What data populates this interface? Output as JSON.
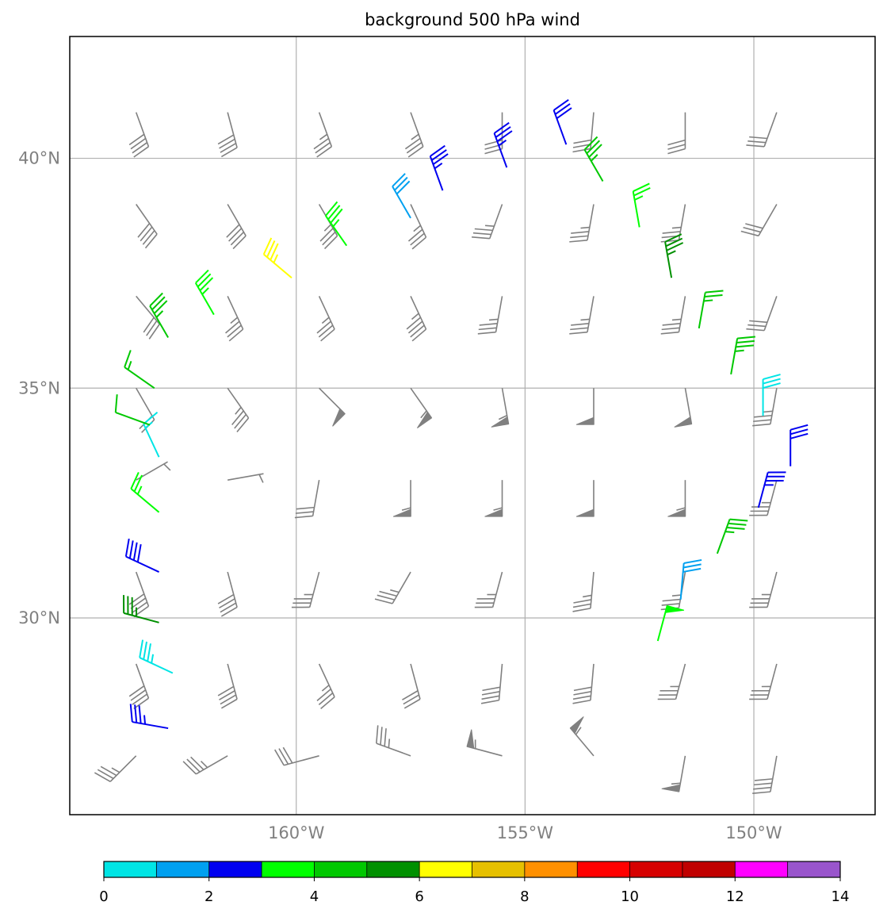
{
  "chart_data": {
    "type": "wind_barbs",
    "title": "background 500 hPa wind",
    "projection": "lon/lat map",
    "lon_range": [
      -164.95,
      -147.35
    ],
    "lat_range": [
      25.72,
      42.65
    ],
    "xticks": [
      {
        "value": -160,
        "label": "160°W"
      },
      {
        "value": -155,
        "label": "155°W"
      },
      {
        "value": -150,
        "label": "150°W"
      }
    ],
    "yticks": [
      {
        "value": 30,
        "label": "30°N"
      },
      {
        "value": 35,
        "label": "35°N"
      },
      {
        "value": 40,
        "label": "40°N"
      }
    ],
    "gridlines": true,
    "background_color": "#808080",
    "background_grid": {
      "lons": [
        -163.5,
        -161.5,
        -159.5,
        -157.5,
        -155.5,
        -153.5,
        -151.5,
        -149.5
      ],
      "lats": [
        27.0,
        29.0,
        31.0,
        33.0,
        35.0,
        37.0,
        39.0,
        41.0
      ],
      "barbs": [
        [
          [
            225,
            35
          ],
          [
            240,
            35
          ],
          [
            255,
            30
          ],
          [
            290,
            35
          ],
          [
            285,
            55
          ],
          [
            320,
            55
          ],
          [
            190,
            55
          ],
          [
            190,
            40
          ]
        ],
        [
          [
            160,
            40
          ],
          [
            165,
            40
          ],
          [
            155,
            35
          ],
          [
            165,
            30
          ],
          [
            185,
            40
          ],
          [
            185,
            40
          ],
          [
            195,
            35
          ],
          [
            195,
            35
          ]
        ],
        [
          [
            160,
            40
          ],
          [
            165,
            40
          ],
          [
            195,
            35
          ],
          [
            210,
            35
          ],
          [
            195,
            35
          ],
          [
            185,
            35
          ],
          [
            190,
            35
          ],
          [
            195,
            35
          ]
        ],
        [
          [
            60,
            5
          ],
          [
            80,
            5
          ],
          [
            190,
            30
          ],
          [
            180,
            55
          ],
          [
            180,
            55
          ],
          [
            180,
            50
          ],
          [
            180,
            55
          ],
          [
            195,
            35
          ]
        ],
        [
          [
            150,
            20
          ],
          [
            145,
            35
          ],
          [
            135,
            50
          ],
          [
            145,
            55
          ],
          [
            170,
            55
          ],
          [
            180,
            50
          ],
          [
            170,
            50
          ],
          [
            190,
            35
          ]
        ],
        [
          [
            140,
            30
          ],
          [
            155,
            35
          ],
          [
            155,
            35
          ],
          [
            155,
            45
          ],
          [
            190,
            35
          ],
          [
            190,
            35
          ],
          [
            190,
            35
          ],
          [
            200,
            30
          ]
        ],
        [
          [
            145,
            40
          ],
          [
            150,
            40
          ],
          [
            150,
            35
          ],
          [
            155,
            35
          ],
          [
            200,
            35
          ],
          [
            190,
            35
          ],
          [
            190,
            35
          ],
          [
            210,
            30
          ]
        ],
        [
          [
            160,
            40
          ],
          [
            165,
            40
          ],
          [
            160,
            35
          ],
          [
            160,
            35
          ],
          [
            180,
            30
          ],
          [
            185,
            30
          ],
          [
            180,
            30
          ],
          [
            200,
            30
          ]
        ]
      ]
    },
    "colorbar": {
      "min": 0,
      "max": 14,
      "step": 1,
      "ticks": [
        0,
        2,
        4,
        6,
        8,
        10,
        12,
        14
      ],
      "colors": [
        "#00e5e5",
        "#00a0f0",
        "#0000f0",
        "#00ff00",
        "#00c800",
        "#009000",
        "#ffff00",
        "#e6c000",
        "#ff9000",
        "#ff0000",
        "#d60000",
        "#c00000",
        "#ff00ff",
        "#9955cc"
      ]
    },
    "highlighted_barbs": [
      {
        "lon": -162.8,
        "lat": 27.6,
        "dir": 280,
        "speed": 35,
        "color": "#0000f0"
      },
      {
        "lon": -162.7,
        "lat": 28.8,
        "dir": 295,
        "speed": 35,
        "color": "#00e5e5"
      },
      {
        "lon": -163.0,
        "lat": 29.9,
        "dir": 285,
        "speed": 35,
        "color": "#009000"
      },
      {
        "lon": -163.0,
        "lat": 31.0,
        "dir": 295,
        "speed": 40,
        "color": "#0000f0"
      },
      {
        "lon": -163.0,
        "lat": 32.3,
        "dir": 310,
        "speed": 25,
        "color": "#00ff00"
      },
      {
        "lon": -163.0,
        "lat": 33.5,
        "dir": 335,
        "speed": 15,
        "color": "#00e5e5"
      },
      {
        "lon": -163.2,
        "lat": 34.2,
        "dir": 290,
        "speed": 10,
        "color": "#00c800"
      },
      {
        "lon": -163.1,
        "lat": 35.0,
        "dir": 305,
        "speed": 15,
        "color": "#00c800"
      },
      {
        "lon": -162.8,
        "lat": 36.1,
        "dir": 330,
        "speed": 35,
        "color": "#00c800"
      },
      {
        "lon": -161.8,
        "lat": 36.6,
        "dir": 330,
        "speed": 35,
        "color": "#00ff00"
      },
      {
        "lon": -160.1,
        "lat": 37.4,
        "dir": 310,
        "speed": 35,
        "color": "#ffff00"
      },
      {
        "lon": -158.9,
        "lat": 38.1,
        "dir": 325,
        "speed": 35,
        "color": "#00ff00"
      },
      {
        "lon": -157.5,
        "lat": 38.7,
        "dir": 330,
        "speed": 30,
        "color": "#00a0f0"
      },
      {
        "lon": -156.8,
        "lat": 39.3,
        "dir": 340,
        "speed": 35,
        "color": "#0000f0"
      },
      {
        "lon": -155.4,
        "lat": 39.8,
        "dir": 340,
        "speed": 35,
        "color": "#0000f0"
      },
      {
        "lon": -154.1,
        "lat": 40.3,
        "dir": 340,
        "speed": 30,
        "color": "#0000f0"
      },
      {
        "lon": -153.3,
        "lat": 39.5,
        "dir": 330,
        "speed": 35,
        "color": "#00c800"
      },
      {
        "lon": -152.5,
        "lat": 38.5,
        "dir": 350,
        "speed": 25,
        "color": "#00ff00"
      },
      {
        "lon": -151.8,
        "lat": 37.4,
        "dir": 350,
        "speed": 35,
        "color": "#009000"
      },
      {
        "lon": -151.2,
        "lat": 36.3,
        "dir": 10,
        "speed": 25,
        "color": "#00c800"
      },
      {
        "lon": -150.5,
        "lat": 35.3,
        "dir": 10,
        "speed": 35,
        "color": "#00c800"
      },
      {
        "lon": -149.8,
        "lat": 34.4,
        "dir": 0,
        "speed": 30,
        "color": "#00e5e5"
      },
      {
        "lon": -149.2,
        "lat": 33.3,
        "dir": 0,
        "speed": 30,
        "color": "#0000f0"
      },
      {
        "lon": -149.9,
        "lat": 32.4,
        "dir": 15,
        "speed": 35,
        "color": "#0000f0"
      },
      {
        "lon": -150.8,
        "lat": 31.4,
        "dir": 20,
        "speed": 35,
        "color": "#00c800"
      },
      {
        "lon": -151.6,
        "lat": 30.4,
        "dir": 5,
        "speed": 30,
        "color": "#00a0f0"
      },
      {
        "lon": -152.1,
        "lat": 29.5,
        "dir": 15,
        "speed": 50,
        "color": "#00ff00"
      }
    ]
  }
}
